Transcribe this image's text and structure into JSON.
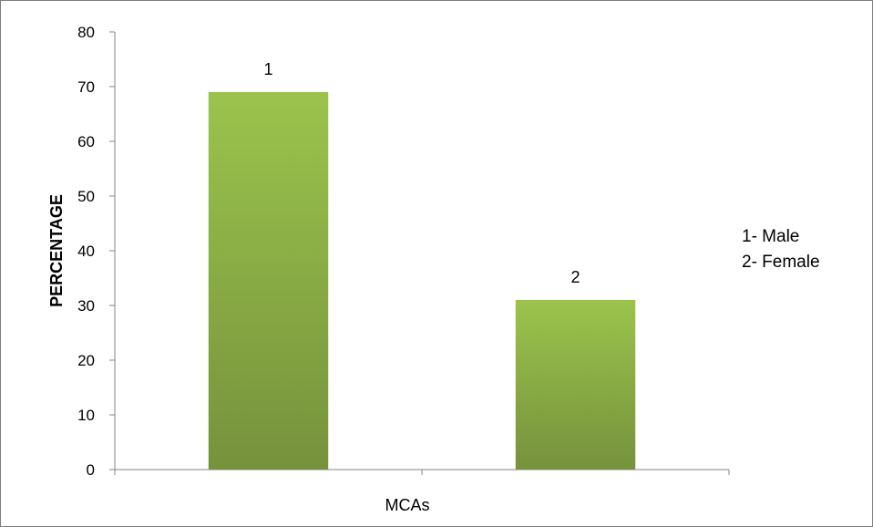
{
  "chart_data": {
    "type": "bar",
    "categories": [
      "1",
      "2"
    ],
    "values": [
      69,
      31
    ],
    "data_labels": [
      "1",
      "2"
    ],
    "title": "",
    "xlabel": "MCAs",
    "ylabel": "PERCENTAGE",
    "ylim": [
      0,
      80
    ],
    "yticks": [
      0,
      10,
      20,
      30,
      40,
      50,
      60,
      70,
      80
    ],
    "grid": false,
    "bar_color_top": "#9bc34c",
    "bar_color_bottom": "#76923c",
    "legend_placement": "right",
    "legend_text": [
      "1- Male",
      "2- Female"
    ]
  }
}
